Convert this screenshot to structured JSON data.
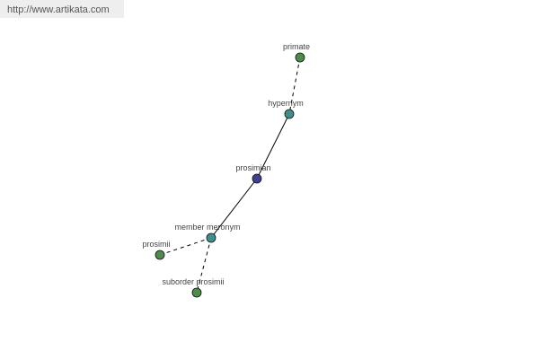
{
  "site_link": "http://www.artikata.com",
  "colors": {
    "relation": "#3f8f8f",
    "root": "#3f408f",
    "leaf": "#4f8a4f"
  },
  "nodes": [
    {
      "id": "primate",
      "label": "primate",
      "kind": "leaf"
    },
    {
      "id": "hypernym",
      "label": "hypernym",
      "kind": "relation"
    },
    {
      "id": "prosimian",
      "label": "prosimian",
      "kind": "root"
    },
    {
      "id": "member-meronym",
      "label": "member meronym",
      "kind": "relation"
    },
    {
      "id": "prosimii",
      "label": "prosimii",
      "kind": "leaf"
    },
    {
      "id": "suborder-prosimii",
      "label": "suborder prosimii",
      "kind": "leaf"
    }
  ],
  "edges": [
    {
      "from": "primate",
      "to": "hypernym",
      "style": "dashed"
    },
    {
      "from": "hypernym",
      "to": "prosimian",
      "style": "solid"
    },
    {
      "from": "prosimian",
      "to": "member-meronym",
      "style": "solid"
    },
    {
      "from": "member-meronym",
      "to": "prosimii",
      "style": "dashed"
    },
    {
      "from": "member-meronym",
      "to": "suborder-prosimii",
      "style": "dashed"
    }
  ]
}
